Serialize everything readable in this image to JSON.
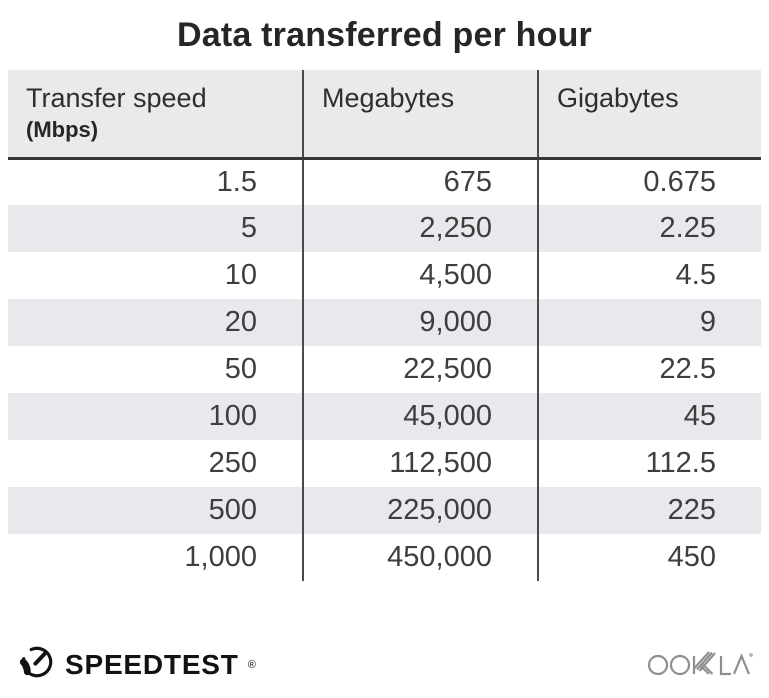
{
  "title": "Data transferred per hour",
  "table": {
    "columns": [
      {
        "label": "Transfer speed",
        "sublabel": "(Mbps)"
      },
      {
        "label": "Megabytes",
        "sublabel": ""
      },
      {
        "label": "Gigabytes",
        "sublabel": ""
      }
    ],
    "rows": [
      [
        "1.5",
        "675",
        "0.675"
      ],
      [
        "5",
        "2,250",
        "2.25"
      ],
      [
        "10",
        "4,500",
        "4.5"
      ],
      [
        "20",
        "9,000",
        "9"
      ],
      [
        "50",
        "22,500",
        "22.5"
      ],
      [
        "100",
        "45,000",
        "45"
      ],
      [
        "250",
        "112,500",
        "112.5"
      ],
      [
        "500",
        "225,000",
        "225"
      ],
      [
        "1,000",
        "450,000",
        "450"
      ]
    ]
  },
  "chart_data": {
    "type": "table",
    "title": "Data transferred per hour",
    "columns": [
      "Transfer speed (Mbps)",
      "Megabytes",
      "Gigabytes"
    ],
    "rows": [
      [
        1.5,
        675,
        0.675
      ],
      [
        5,
        2250,
        2.25
      ],
      [
        10,
        4500,
        4.5
      ],
      [
        20,
        9000,
        9
      ],
      [
        50,
        22500,
        22.5
      ],
      [
        100,
        45000,
        45
      ],
      [
        250,
        112500,
        112.5
      ],
      [
        500,
        225000,
        225
      ],
      [
        1000,
        450000,
        450
      ]
    ]
  },
  "footer": {
    "speedtest_label": "SPEEDTEST",
    "speedtest_reg": "®",
    "ookla_label": "OOKLA"
  },
  "colors": {
    "header_bg": "#eae9eb",
    "alt_row_bg": "#e9e8ec",
    "divider": "#4a4a4a",
    "header_border": "#383838",
    "title_text": "#262626",
    "body_text": "#3f3e3e",
    "speedtest_black": "#121212",
    "ookla_gray": "#8f8f8f"
  }
}
